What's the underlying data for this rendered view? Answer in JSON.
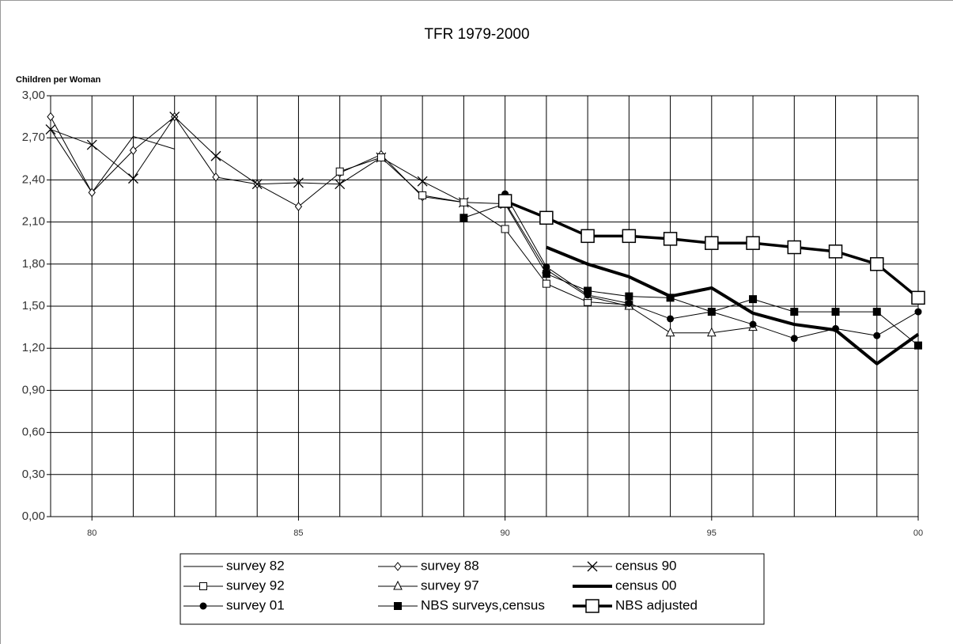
{
  "chart_data": {
    "type": "line",
    "title": "TFR 1979-2000",
    "y_label": "Children per Woman",
    "x": [
      1979,
      1980,
      1981,
      1982,
      1983,
      1984,
      1985,
      1986,
      1987,
      1988,
      1989,
      1990,
      1991,
      1992,
      1993,
      1994,
      1995,
      1996,
      1997,
      1998,
      1999,
      2000
    ],
    "xlim": [
      1979,
      2000
    ],
    "xticks": [
      {
        "value": 1980,
        "label": "80"
      },
      {
        "value": 1985,
        "label": "85"
      },
      {
        "value": 1990,
        "label": "90"
      },
      {
        "value": 1995,
        "label": "95"
      },
      {
        "value": 2000,
        "label": "00"
      }
    ],
    "ylim": [
      0,
      3
    ],
    "yticks": [
      {
        "value": 0,
        "label": "0,00"
      },
      {
        "value": 0.3,
        "label": "0,30"
      },
      {
        "value": 0.6,
        "label": "0,60"
      },
      {
        "value": 0.9,
        "label": "0,90"
      },
      {
        "value": 1.2,
        "label": "1,20"
      },
      {
        "value": 1.5,
        "label": "1,50"
      },
      {
        "value": 1.8,
        "label": "1,80"
      },
      {
        "value": 2.1,
        "label": "2,10"
      },
      {
        "value": 2.4,
        "label": "2,40"
      },
      {
        "value": 2.7,
        "label": "2,70"
      },
      {
        "value": 3,
        "label": "3,00"
      }
    ],
    "grid": true,
    "series": [
      {
        "name": "survey 82",
        "color": "#000000",
        "marker": "none",
        "width": 1,
        "values": [
          2.76,
          2.31,
          2.71,
          2.62,
          null,
          null,
          null,
          null,
          null,
          null,
          null,
          null,
          null,
          null,
          null,
          null,
          null,
          null,
          null,
          null,
          null,
          null
        ]
      },
      {
        "name": "survey 88",
        "color": "#000000",
        "marker": "diamond",
        "width": 1,
        "values": [
          2.85,
          2.31,
          2.61,
          2.85,
          2.42,
          2.37,
          2.21,
          2.45,
          2.58,
          2.28,
          2.24,
          null,
          null,
          null,
          null,
          null,
          null,
          null,
          null,
          null,
          null,
          null
        ]
      },
      {
        "name": "census 90",
        "color": "#000000",
        "marker": "x",
        "width": 1,
        "values": [
          2.76,
          2.65,
          2.41,
          2.85,
          2.57,
          2.37,
          2.38,
          2.37,
          2.56,
          2.39,
          2.24,
          2.23,
          null,
          null,
          null,
          null,
          null,
          null,
          null,
          null,
          null,
          null
        ]
      },
      {
        "name": "survey 92",
        "color": "#000000",
        "marker": "square",
        "width": 1,
        "values": [
          null,
          null,
          null,
          null,
          null,
          null,
          null,
          2.46,
          2.56,
          2.29,
          2.24,
          2.05,
          1.66,
          1.53,
          1.51,
          null,
          null,
          null,
          null,
          null,
          null,
          null
        ]
      },
      {
        "name": "survey 97",
        "color": "#000000",
        "marker": "triangle",
        "width": 1,
        "values": [
          null,
          null,
          null,
          null,
          null,
          null,
          null,
          null,
          null,
          null,
          null,
          2.24,
          1.76,
          1.57,
          1.5,
          1.31,
          1.31,
          1.35,
          null,
          null,
          null,
          null
        ]
      },
      {
        "name": "census 00",
        "color": "#000000",
        "marker": "none",
        "width": 4,
        "values": [
          null,
          null,
          null,
          null,
          null,
          null,
          null,
          null,
          null,
          null,
          null,
          null,
          1.92,
          1.8,
          1.71,
          1.57,
          1.63,
          1.45,
          1.37,
          1.33,
          1.09,
          1.3
        ]
      },
      {
        "name": "survey 01",
        "color": "#000000",
        "marker": "circle",
        "width": 1,
        "values": [
          null,
          null,
          null,
          null,
          null,
          null,
          null,
          null,
          null,
          null,
          null,
          2.3,
          1.78,
          1.58,
          1.52,
          1.41,
          1.46,
          1.37,
          1.27,
          1.34,
          1.29,
          1.46
        ]
      },
      {
        "name": "NBS surveys,census",
        "color": "#000000",
        "marker": "filled-square",
        "width": 1,
        "values": [
          null,
          null,
          null,
          null,
          null,
          null,
          null,
          null,
          null,
          null,
          2.13,
          2.23,
          1.73,
          1.61,
          1.57,
          1.56,
          1.46,
          1.55,
          1.46,
          1.46,
          1.46,
          1.22
        ]
      },
      {
        "name": "NBS adjusted",
        "color": "#000000",
        "marker": "big-square",
        "width": 3.5,
        "values": [
          null,
          null,
          null,
          null,
          null,
          null,
          null,
          null,
          null,
          null,
          null,
          2.25,
          2.13,
          2.0,
          2.0,
          1.98,
          1.95,
          1.95,
          1.92,
          1.89,
          1.8,
          1.56
        ]
      }
    ]
  }
}
